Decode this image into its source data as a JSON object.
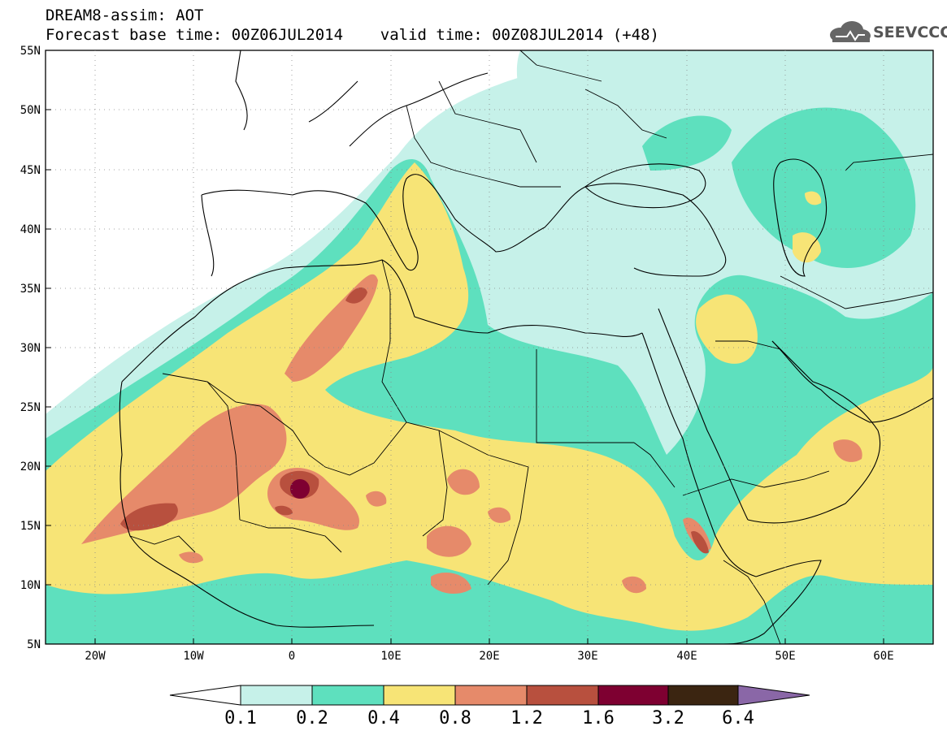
{
  "header": {
    "title_line1": "DREAM8-assim: AOT",
    "title_line2": "Forecast base time: 00Z06JUL2014    valid time: 00Z08JUL2014 (+48)",
    "logo_text": "SEEVCCC"
  },
  "map": {
    "lat_labels": [
      "55N",
      "50N",
      "45N",
      "40N",
      "35N",
      "30N",
      "25N",
      "20N",
      "15N",
      "10N",
      "5N"
    ],
    "lon_labels": [
      "20W",
      "10W",
      "0",
      "10E",
      "20E",
      "30E",
      "40E",
      "50E",
      "60E"
    ]
  },
  "legend": {
    "labels": [
      "0.1",
      "0.2",
      "0.4",
      "0.8",
      "1.2",
      "1.6",
      "3.2",
      "6.4"
    ],
    "colors": [
      "#ffffff",
      "#c6f1e9",
      "#5ee0be",
      "#f7e476",
      "#e68a6a",
      "#b8503e",
      "#7e0031",
      "#3b2511",
      "#8a67a7"
    ]
  },
  "colors": {
    "c01": "#c6f1e9",
    "c02": "#5ee0be",
    "c04": "#f7e476",
    "c08": "#e68a6a",
    "c12": "#b8503e",
    "c16": "#7e0031"
  }
}
